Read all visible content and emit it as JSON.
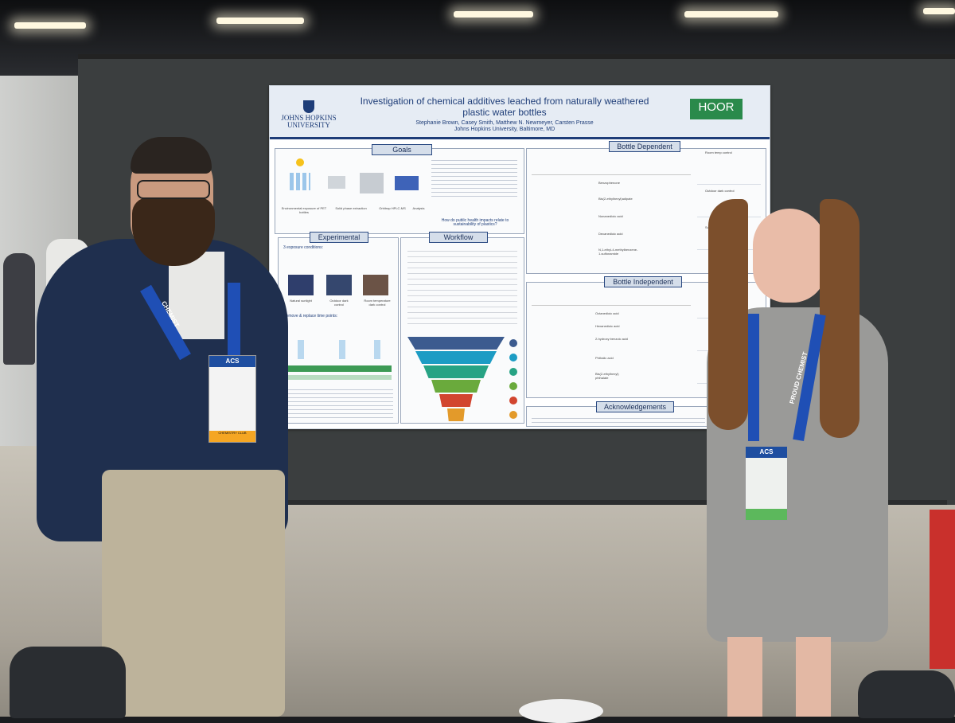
{
  "poster": {
    "university_logo": "JOHNS HOPKINS UNIVERSITY",
    "title": "Investigation of chemical additives leached from naturally weathered plastic water bottles",
    "authors": "Stephanie Brown, Casey Smith, Matthew N. Newmeyer, Carsten Prasse",
    "affiliation": "Johns Hopkins University, Baltimore, MD",
    "org_logo": "HOOR",
    "sections": {
      "goals": "Goals",
      "bottle_dependent": "Bottle Dependent",
      "experimental": "Experimental",
      "workflow": "Workflow",
      "bottle_independent": "Bottle Independent",
      "acknowledgements": "Acknowledgements"
    },
    "goals_steps": [
      "Environmental exposure of PET bottles",
      "Solid phase extraction",
      "Orbitrap HPLC-MS",
      "Analysis"
    ],
    "goals_question": "How do public health impacts relate to sustainability of plastics?",
    "experimental": {
      "exposure_heading": "3 exposure conditions:",
      "conditions": [
        "Natural sunlight",
        "Outdoor dark control",
        "Room temperature dark control"
      ],
      "remove_heading": "Remove & replace time points:"
    },
    "bottle_dependent_compounds": [
      "Benzophenone",
      "Bis(2-ethylhexyl)adipate",
      "Nonanedioic acid",
      "Decanedioic acid",
      "N,1-ethyl-4-methylbenzene-1-sulfonamide"
    ],
    "bottle_independent_compounds": [
      "Octanedioic acid",
      "Hexanedioic acid",
      "2-hydroxy benzoic acid",
      "Phthalic acid",
      "Bis(2-ethylhexyl) phthalate"
    ],
    "chart_labels": [
      "Room temp control",
      "Outdoor dark control",
      "Sunlight exposed"
    ]
  },
  "badges": {
    "left_header": "ACS",
    "left_ribbon": "CHEMISTRY CLUB",
    "right_header": "ACS",
    "lanyard_text": "CHEMIST",
    "lanyard_text_right": "PROUD CHEMIST"
  },
  "colors": {
    "poster_navy": "#1e3d78",
    "board_gray": "#3b3e3f",
    "lanyard_blue": "#1f4fb5",
    "hoor_green": "#2a8a4b"
  }
}
